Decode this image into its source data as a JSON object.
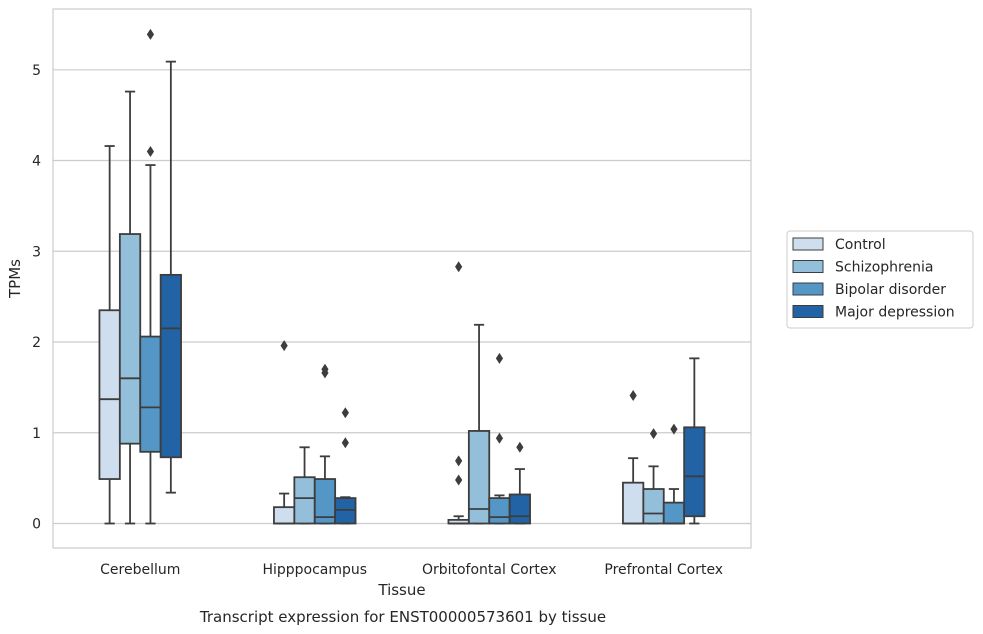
{
  "chart_data": {
    "type": "box",
    "xlabel": "Tissue",
    "ylabel": "TPMs",
    "caption": "Transcript expression for ENST00000573601 by tissue",
    "categories": [
      "Cerebellum",
      "Hipppocampus",
      "Orbitofontal Cortex",
      "Prefrontal Cortex"
    ],
    "ylim": [
      -0.27,
      5.67
    ],
    "yticks": [
      0,
      1,
      2,
      3,
      4,
      5
    ],
    "grid": "horizontal",
    "legend_position": "right",
    "series": [
      {
        "name": "Control",
        "color": "#cfdeef",
        "boxes": [
          {
            "min": 0.0,
            "q1": 0.49,
            "median": 1.37,
            "q3": 2.35,
            "max": 4.16,
            "outliers": []
          },
          {
            "min": 0.0,
            "q1": 0.0,
            "median": 0.0,
            "q3": 0.18,
            "max": 0.33,
            "outliers": [
              1.96
            ]
          },
          {
            "min": 0.0,
            "q1": 0.0,
            "median": 0.0,
            "q3": 0.04,
            "max": 0.08,
            "outliers": [
              0.48,
              0.69,
              2.83
            ]
          },
          {
            "min": 0.0,
            "q1": 0.0,
            "median": 0.0,
            "q3": 0.45,
            "max": 0.72,
            "outliers": [
              1.41
            ]
          }
        ]
      },
      {
        "name": "Schizophrenia",
        "color": "#94bfdb",
        "boxes": [
          {
            "min": 0.0,
            "q1": 0.88,
            "median": 1.6,
            "q3": 3.19,
            "max": 4.76,
            "outliers": []
          },
          {
            "min": 0.0,
            "q1": 0.0,
            "median": 0.28,
            "q3": 0.51,
            "max": 0.84,
            "outliers": []
          },
          {
            "min": 0.0,
            "q1": 0.0,
            "median": 0.16,
            "q3": 1.02,
            "max": 2.19,
            "outliers": []
          },
          {
            "min": 0.0,
            "q1": 0.0,
            "median": 0.11,
            "q3": 0.38,
            "max": 0.63,
            "outliers": [
              0.99
            ]
          }
        ]
      },
      {
        "name": "Bipolar disorder",
        "color": "#5497c6",
        "boxes": [
          {
            "min": 0.0,
            "q1": 0.79,
            "median": 1.28,
            "q3": 2.06,
            "max": 3.95,
            "outliers": [
              4.1,
              5.39
            ]
          },
          {
            "min": 0.0,
            "q1": 0.0,
            "median": 0.07,
            "q3": 0.49,
            "max": 0.74,
            "outliers": [
              1.66,
              1.7
            ]
          },
          {
            "min": 0.0,
            "q1": 0.0,
            "median": 0.07,
            "q3": 0.28,
            "max": 0.31,
            "outliers": [
              0.94,
              1.82
            ]
          },
          {
            "min": 0.0,
            "q1": 0.0,
            "median": 0.0,
            "q3": 0.23,
            "max": 0.38,
            "outliers": [
              1.04
            ]
          }
        ]
      },
      {
        "name": "Major depression",
        "color": "#2263a5",
        "boxes": [
          {
            "min": 0.34,
            "q1": 0.73,
            "median": 2.15,
            "q3": 2.74,
            "max": 5.09,
            "outliers": []
          },
          {
            "min": 0.0,
            "q1": 0.0,
            "median": 0.15,
            "q3": 0.28,
            "max": 0.29,
            "outliers": [
              0.89,
              1.22
            ]
          },
          {
            "min": 0.0,
            "q1": 0.0,
            "median": 0.08,
            "q3": 0.32,
            "max": 0.6,
            "outliers": [
              0.84
            ]
          },
          {
            "min": 0.0,
            "q1": 0.08,
            "median": 0.52,
            "q3": 1.06,
            "max": 1.82,
            "outliers": []
          }
        ]
      }
    ]
  }
}
